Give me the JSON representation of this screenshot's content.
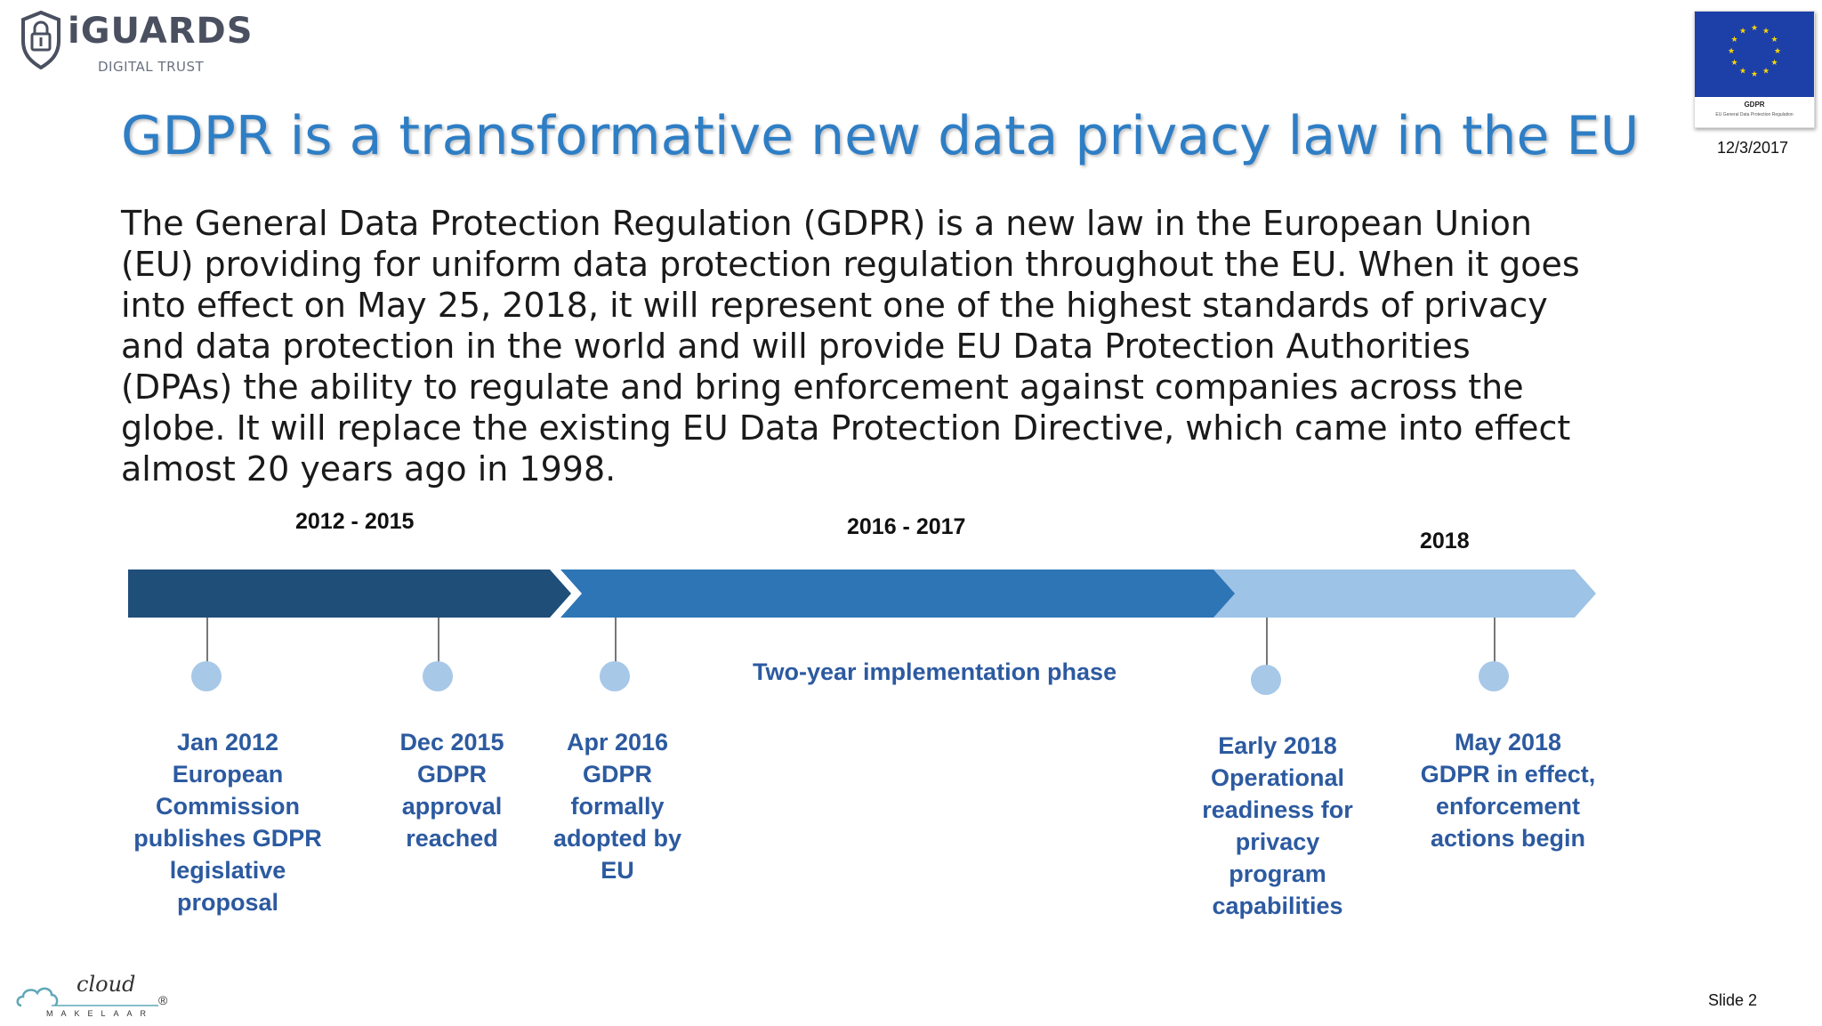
{
  "brand": {
    "name": "iGUARDS",
    "tagline": "DIGITAL TRUST"
  },
  "badge": {
    "title": "GDPR",
    "subtitle": "EU General Data Protection Regulation",
    "icon": "eu-flag-icon",
    "flag_color": "#1d3fa8"
  },
  "date": "12/3/2017",
  "title": "GDPR is a transformative new data privacy law in the EU",
  "body": "The General Data Protection Regulation (GDPR) is a new law in the European Union (EU) providing for uniform data protection regulation throughout the EU. When it goes into effect on May 25, 2018, it will represent one of the highest standards of privacy and data protection in the world and will provide EU Data Protection Authorities (DPAs) the ability to regulate and bring enforcement against companies across the globe. It will replace the existing EU Data Protection Directive, which came into effect almost 20 years ago in 1998.",
  "timeline": {
    "periods": [
      {
        "label": "2012 - 2015",
        "color": "#1f4e79"
      },
      {
        "label": "2016 - 2017",
        "color": "#2e75b6"
      },
      {
        "label": "2018",
        "color": "#9dc3e6"
      }
    ],
    "phase_label": "Two-year implementation phase",
    "milestones": [
      {
        "lines": [
          "Jan 2012",
          "European",
          "Commission",
          "publishes GDPR",
          "legislative",
          "proposal"
        ]
      },
      {
        "lines": [
          "Dec 2015",
          "GDPR",
          "approval",
          "reached"
        ]
      },
      {
        "lines": [
          "Apr 2016",
          "GDPR",
          "formally",
          "adopted by",
          "EU"
        ]
      },
      {
        "lines": [
          "Early 2018",
          "Operational",
          "readiness for",
          "privacy",
          "program",
          "capabilities"
        ]
      },
      {
        "lines": [
          "May 2018",
          "GDPR in effect,",
          "enforcement",
          "actions begin"
        ]
      }
    ],
    "dot_color": "#a8c8e8",
    "text_color": "#2c5aa0"
  },
  "footer": {
    "logo_text": "cloud",
    "logo_sub": "MAKELAAR",
    "registered_mark": "®",
    "slide_number": "Slide 2"
  }
}
